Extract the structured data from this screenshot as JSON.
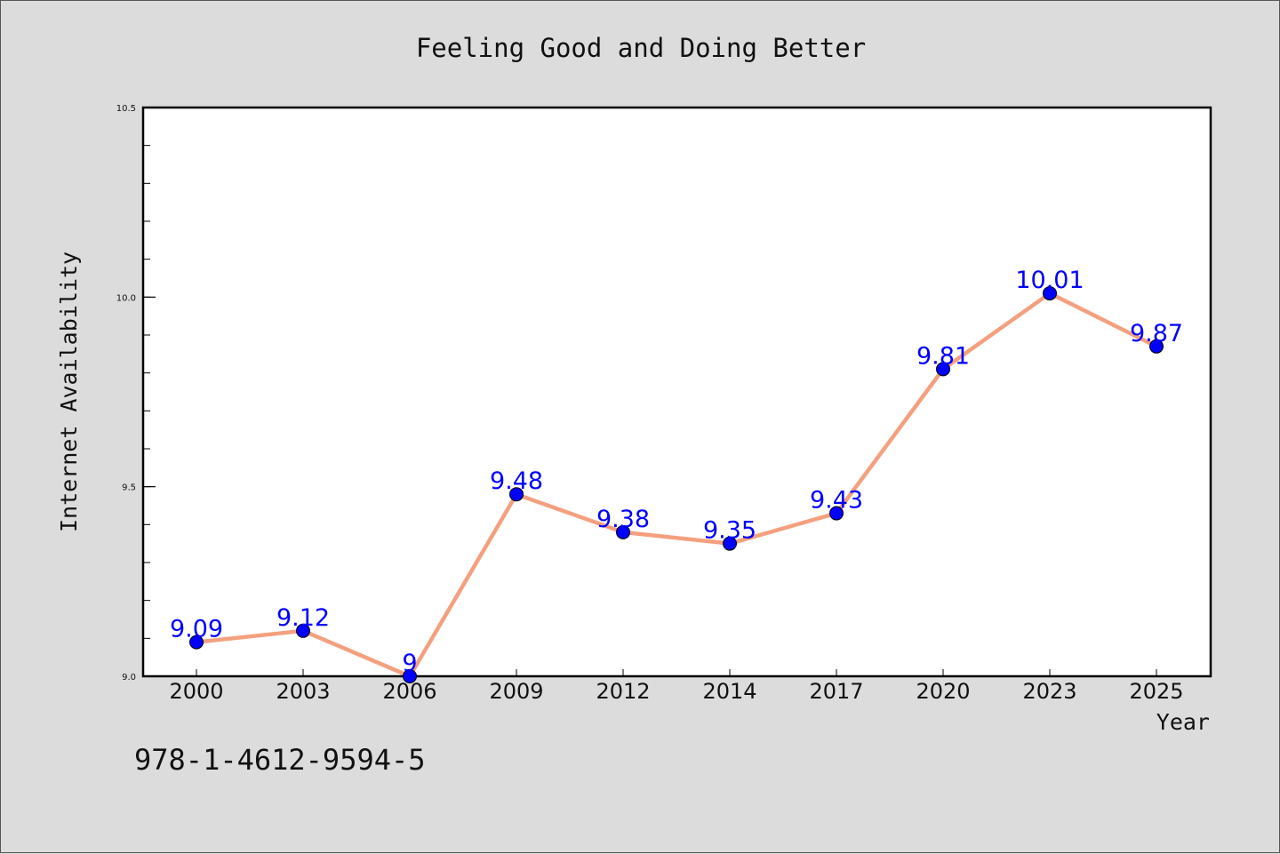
{
  "chart_data": {
    "type": "line",
    "title": "Feeling Good and Doing Better",
    "xlabel": "Year",
    "ylabel": "Internet Availability",
    "categories": [
      "2000",
      "2003",
      "2006",
      "2009",
      "2012",
      "2014",
      "2017",
      "2020",
      "2023",
      "2025"
    ],
    "series": [
      {
        "values": [
          9.09,
          9.12,
          9.0,
          9.48,
          9.38,
          9.35,
          9.43,
          9.81,
          10.01,
          9.87
        ],
        "data_labels": [
          "9.09",
          "9.12",
          "9",
          "9.48",
          "9.38",
          "9.35",
          "9.43",
          "9.81",
          "10.01",
          "9.87"
        ],
        "line_color": "#f4a07f",
        "marker_color": "#0000ff"
      }
    ],
    "ylim": [
      9.0,
      10.5
    ],
    "yticks": [
      "9.0",
      "9.5",
      "10.0",
      "10.5"
    ],
    "grid": false,
    "legend": "none"
  },
  "annotation": "978-1-4612-9594-5",
  "colors": {
    "background": "#dcdcdc",
    "plot_background": "#ffffff",
    "line": "#f4a07f",
    "marker": "#0000ff",
    "data_label": "#0000ff"
  }
}
